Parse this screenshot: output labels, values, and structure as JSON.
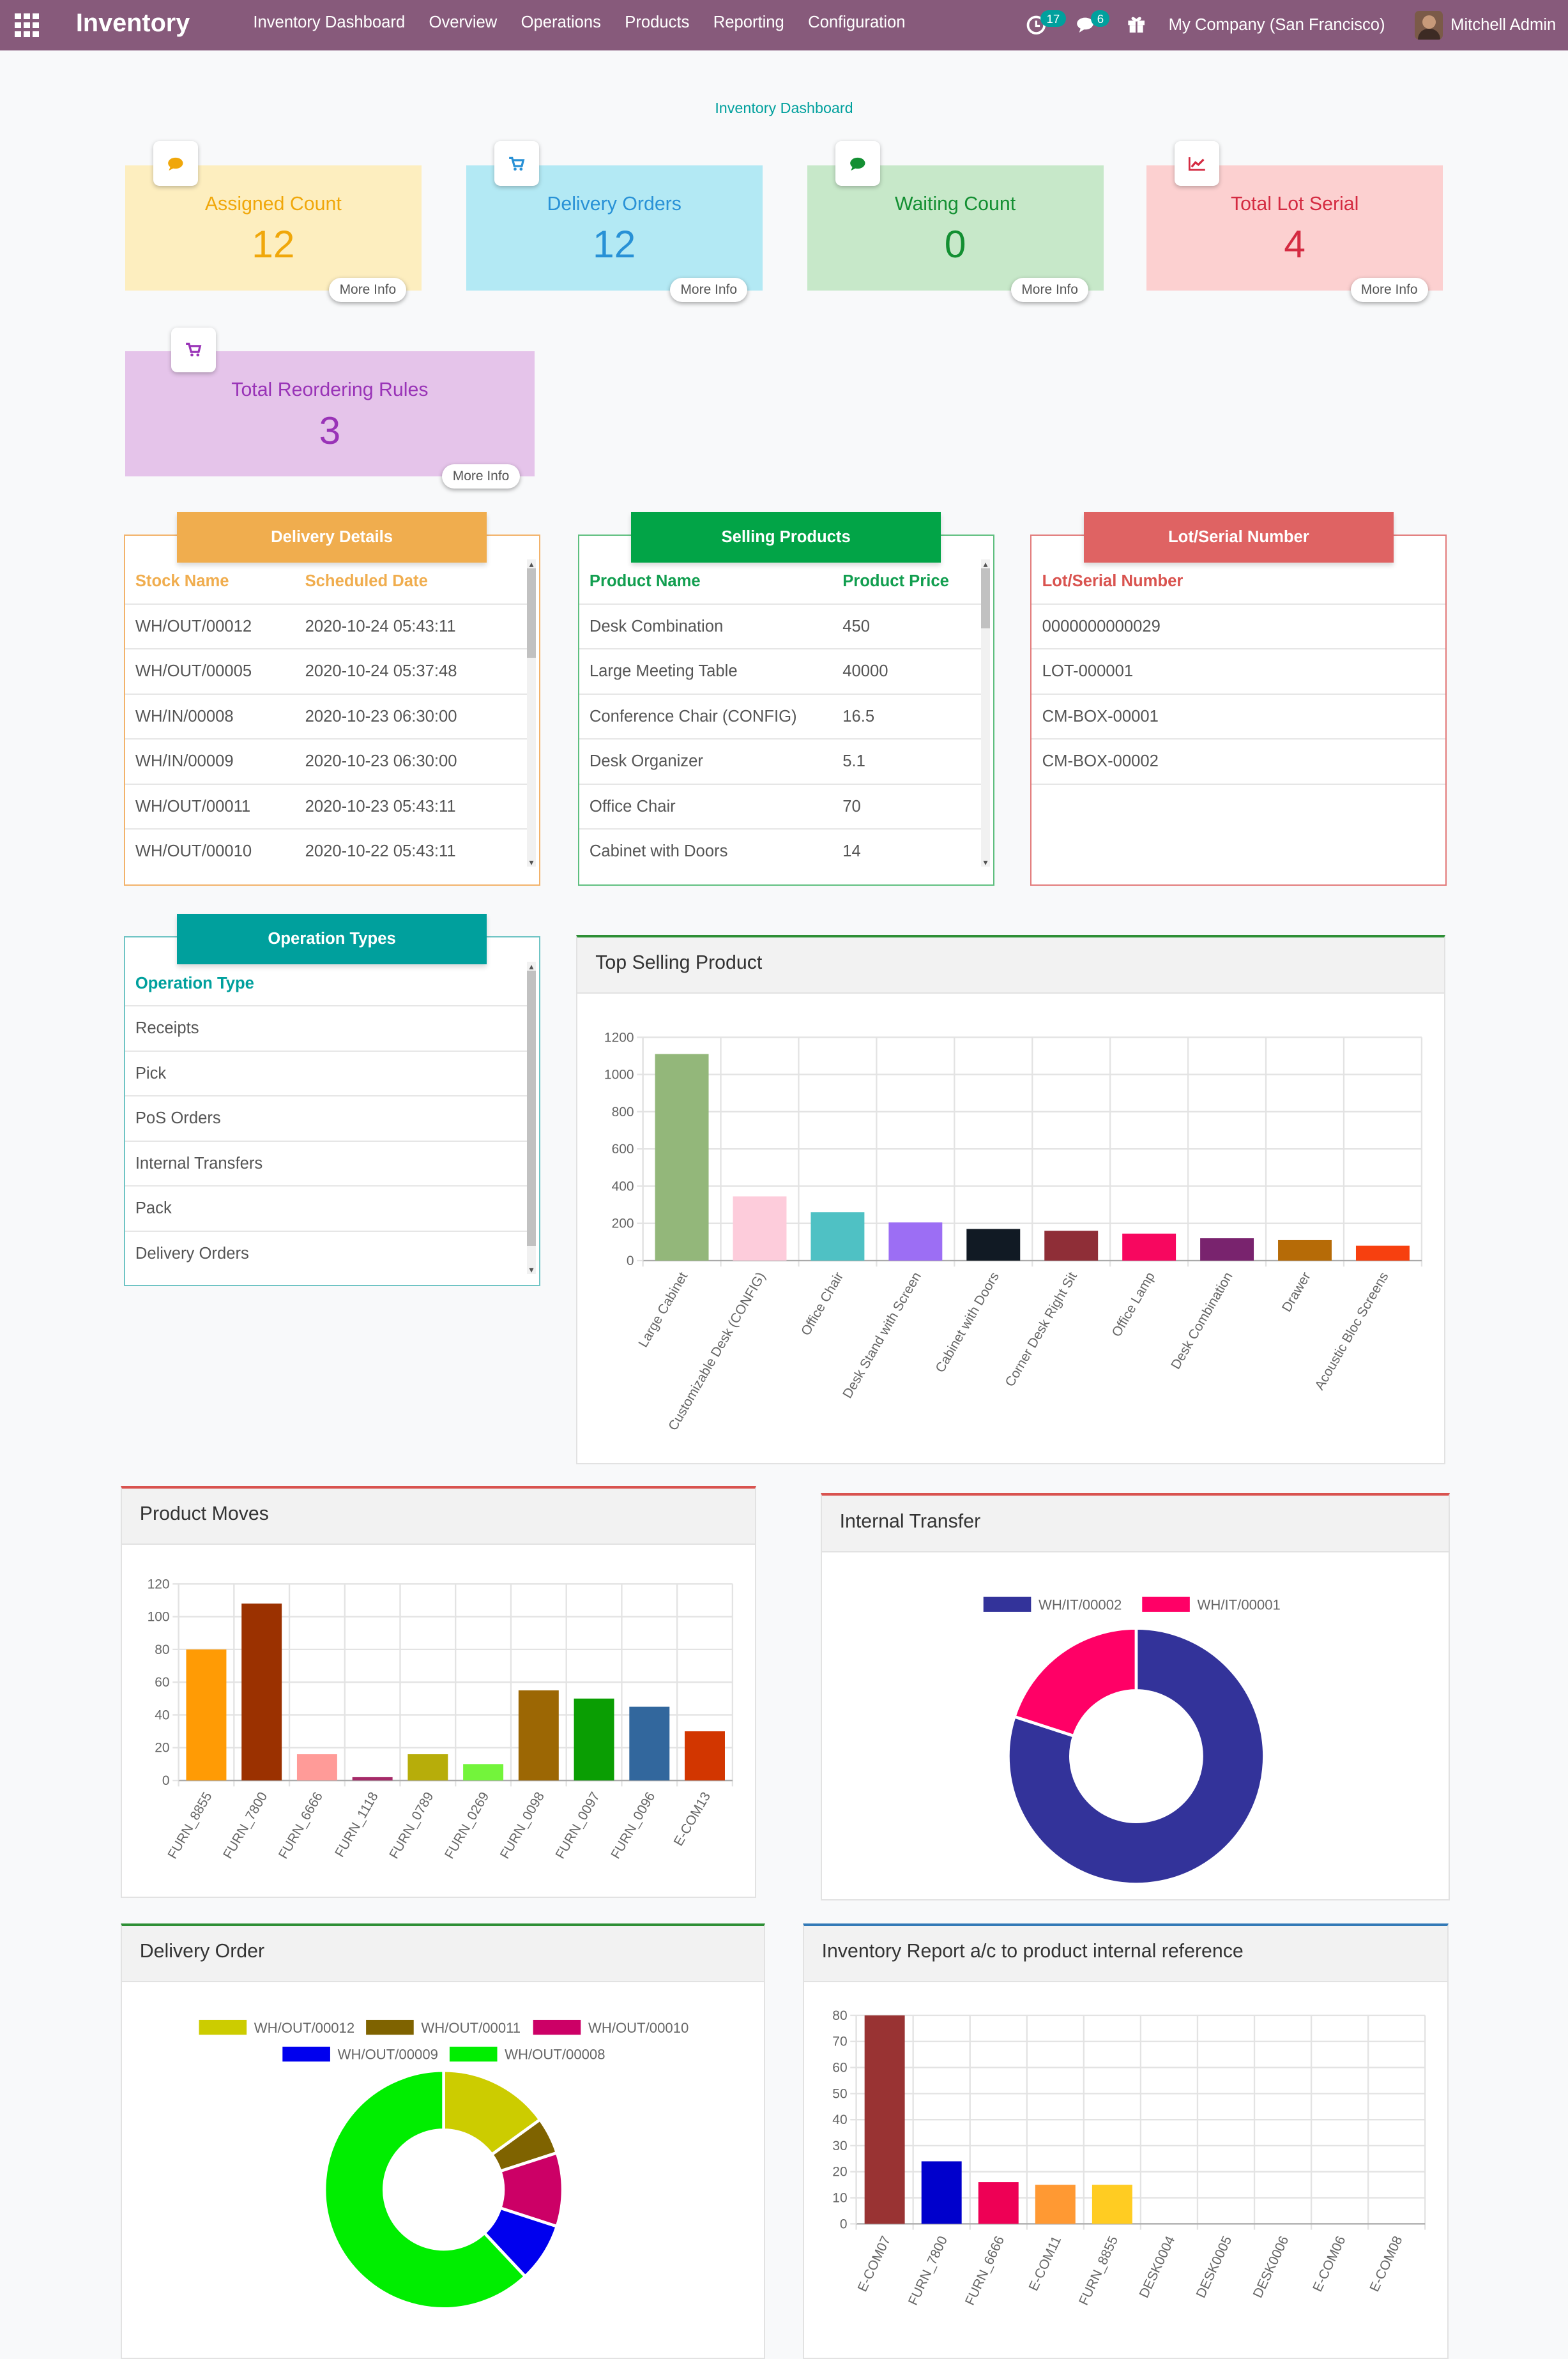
{
  "nav": {
    "brand": "Inventory",
    "menu": [
      "Inventory Dashboard",
      "Overview",
      "Operations",
      "Products",
      "Reporting",
      "Configuration"
    ],
    "activities_count": "17",
    "messages_count": "6",
    "company": "My Company (San Francisco)",
    "user": "Mitchell Admin"
  },
  "page_title": "Inventory Dashboard",
  "stats": [
    {
      "label": "Assigned Count",
      "value": "12",
      "more": "More Info",
      "icon": "comment-icon",
      "bg": "#fdeebf",
      "color": "#f0a70a"
    },
    {
      "label": "Delivery Orders",
      "value": "12",
      "more": "More Info",
      "icon": "cart-icon",
      "bg": "#b3e9f4",
      "color": "#2891d6"
    },
    {
      "label": "Waiting Count",
      "value": "0",
      "more": "More Info",
      "icon": "comment-icon",
      "bg": "#c7e8c9",
      "color": "#138f32"
    },
    {
      "label": "Total Lot Serial",
      "value": "4",
      "more": "More Info",
      "icon": "line-chart-icon",
      "bg": "#fcd0d0",
      "color": "#d42a41"
    },
    {
      "label": "Total Reordering Rules",
      "value": "3",
      "more": "More Info",
      "icon": "cart-icon",
      "bg": "#e5c4ea",
      "color": "#9933b7"
    }
  ],
  "delivery_details": {
    "title": "Delivery Details",
    "headers": [
      "Stock Name",
      "Scheduled Date"
    ],
    "rows": [
      [
        "WH/OUT/00012",
        "2020-10-24 05:43:11"
      ],
      [
        "WH/OUT/00005",
        "2020-10-24 05:37:48"
      ],
      [
        "WH/IN/00008",
        "2020-10-23 06:30:00"
      ],
      [
        "WH/IN/00009",
        "2020-10-23 06:30:00"
      ],
      [
        "WH/OUT/00011",
        "2020-10-23 05:43:11"
      ],
      [
        "WH/OUT/00010",
        "2020-10-22 05:43:11"
      ]
    ]
  },
  "selling_products": {
    "title": "Selling Products",
    "headers": [
      "Product Name",
      "Product Price"
    ],
    "rows": [
      [
        "Desk Combination",
        "450"
      ],
      [
        "Large Meeting Table",
        "40000"
      ],
      [
        "Conference Chair (CONFIG)",
        "16.5"
      ],
      [
        "Desk Organizer",
        "5.1"
      ],
      [
        "Office Chair",
        "70"
      ],
      [
        "Cabinet with Doors",
        "14"
      ]
    ]
  },
  "lot_serial": {
    "title": "Lot/Serial Number",
    "headers": [
      "Lot/Serial Number"
    ],
    "rows": [
      [
        "0000000000029"
      ],
      [
        "LOT-000001"
      ],
      [
        "CM-BOX-00001"
      ],
      [
        "CM-BOX-00002"
      ]
    ]
  },
  "operation_types": {
    "title": "Operation Types",
    "headers": [
      "Operation Type"
    ],
    "rows": [
      [
        "Receipts"
      ],
      [
        "Pick"
      ],
      [
        "PoS Orders"
      ],
      [
        "Internal Transfers"
      ],
      [
        "Pack"
      ],
      [
        "Delivery Orders"
      ]
    ]
  },
  "panels": {
    "top_selling": "Top Selling Product",
    "product_moves": "Product Moves",
    "internal_transfer": "Internal Transfer",
    "delivery_order": "Delivery Order",
    "inventory_report": "Inventory Report a/c to product internal reference"
  },
  "chart_data": [
    {
      "id": "top_selling",
      "type": "bar",
      "title": "Top Selling Product",
      "categories": [
        "Large Cabinet",
        "Customizable Desk (CONFIG)",
        "Office Chair",
        "Desk Stand with Screen",
        "Cabinet with Doors",
        "Corner Desk Right Sit",
        "Office Lamp",
        "Desk Combination",
        "Drawer",
        "Acoustic Bloc Screens"
      ],
      "values": [
        1110,
        345,
        260,
        205,
        170,
        160,
        145,
        120,
        110,
        80
      ],
      "colors": [
        "#93b77a",
        "#fdccdb",
        "#4fc1c4",
        "#9c6ef4",
        "#111a24",
        "#8f2e37",
        "#f7075f",
        "#79236e",
        "#b66b07",
        "#f7400f"
      ],
      "ylim": [
        0,
        1200
      ],
      "yticks": [
        0,
        200,
        400,
        600,
        800,
        1000,
        1200
      ],
      "grid": true
    },
    {
      "id": "product_moves",
      "type": "bar",
      "title": "Product Moves",
      "categories": [
        "FURN_8855",
        "FURN_7800",
        "FURN_6666",
        "FURN_1118",
        "FURN_0789",
        "FURN_0269",
        "FURN_0098",
        "FURN_0097",
        "FURN_0096",
        "E-COM13"
      ],
      "values": [
        80,
        108,
        16,
        2,
        16,
        10,
        55,
        50,
        45,
        30
      ],
      "colors": [
        "#ff9b05",
        "#9b3100",
        "#ff9b98",
        "#a52a68",
        "#b7ad0a",
        "#73f43b",
        "#9c6704",
        "#0a9e03",
        "#32679d",
        "#d23600"
      ],
      "ylim": [
        0,
        120
      ],
      "yticks": [
        0,
        20,
        40,
        60,
        80,
        100,
        120
      ],
      "grid": true
    },
    {
      "id": "internal_transfer",
      "type": "pie",
      "title": "Internal Transfer",
      "labels": [
        "WH/IT/00002",
        "WH/IT/00001"
      ],
      "values": [
        80,
        20
      ],
      "colors": [
        "#33339a",
        "#ff0066"
      ],
      "legend": "top"
    },
    {
      "id": "delivery_order",
      "type": "pie",
      "title": "Delivery Order",
      "labels": [
        "WH/OUT/00012",
        "WH/OUT/00011",
        "WH/OUT/00010",
        "WH/OUT/00009",
        "WH/OUT/00008"
      ],
      "values": [
        15,
        5,
        10,
        8,
        62
      ],
      "colors": [
        "#cccc00",
        "#7f6300",
        "#cc0066",
        "#0000ee",
        "#00ee00"
      ],
      "legend": "top"
    },
    {
      "id": "inventory_report",
      "type": "bar",
      "title": "Inventory Report a/c to product internal reference",
      "categories": [
        "E-COM07",
        "FURN_7800",
        "FURN_6666",
        "E-COM11",
        "FURN_8855",
        "DESK0004",
        "DESK0005",
        "DESK0006",
        "E-COM06",
        "E-COM08"
      ],
      "values": [
        80,
        24,
        16,
        15,
        15,
        0,
        0,
        0,
        0,
        0
      ],
      "colors": [
        "#993333",
        "#0000cc",
        "#ee0055",
        "#ff9933",
        "#ffcc22",
        "#888888",
        "#888888",
        "#888888",
        "#888888",
        "#888888"
      ],
      "ylim": [
        0,
        80
      ],
      "yticks": [
        0,
        10,
        20,
        30,
        40,
        50,
        60,
        70,
        80
      ],
      "grid": true
    }
  ]
}
